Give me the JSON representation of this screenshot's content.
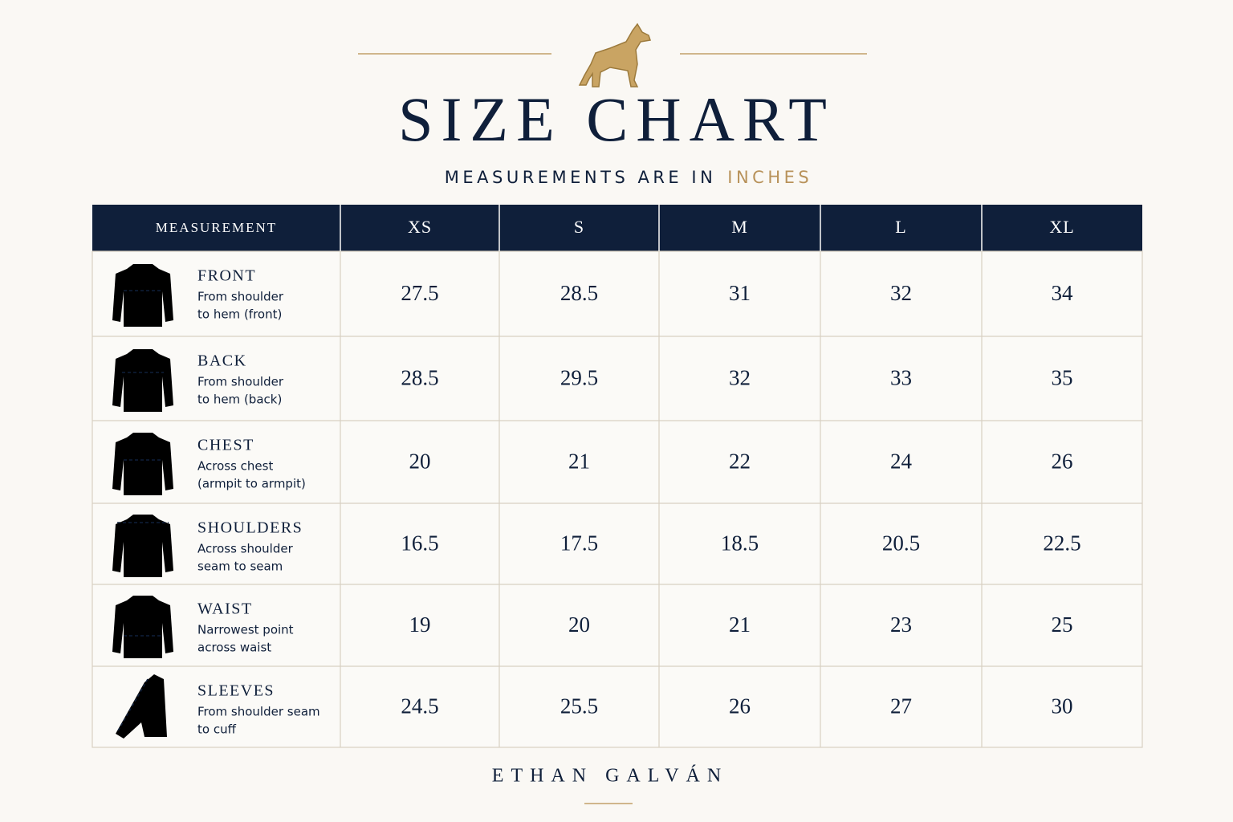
{
  "header": {
    "title": "SIZE CHART",
    "subtitle": "MEASUREMENTS ARE IN",
    "unit": "INCHES"
  },
  "table": {
    "columns": [
      "MEASUREMENT",
      "XS",
      "S",
      "M",
      "L",
      "XL"
    ],
    "rows": [
      {
        "name": "FRONT",
        "description": [
          "From shoulder",
          "to hem (front)"
        ],
        "values": [
          27.5,
          28.5,
          31,
          32,
          34
        ]
      },
      {
        "name": "BACK",
        "description": [
          "From shoulder",
          "to hem (back)"
        ],
        "values": [
          28.5,
          29.5,
          32,
          33,
          35
        ]
      },
      {
        "name": "CHEST",
        "description": [
          "Across chest",
          "(armpit to armpit)"
        ],
        "values": [
          20,
          21,
          22,
          24,
          26
        ]
      },
      {
        "name": "SHOULDERS",
        "description": [
          "Across shoulder",
          "seam to seam"
        ],
        "values": [
          16.5,
          17.5,
          18.5,
          20.5,
          22.5
        ]
      },
      {
        "name": "WAIST",
        "description": [
          "Narrowest point",
          "across waist"
        ],
        "values": [
          19,
          20,
          21,
          23,
          25
        ]
      },
      {
        "name": "SLEEVES",
        "description": [
          "From shoulder seam",
          "to cuff"
        ],
        "values": [
          24.5,
          25.5,
          26,
          27,
          30
        ]
      }
    ]
  },
  "footer": {
    "brand": "ETHAN GALVÁN"
  }
}
